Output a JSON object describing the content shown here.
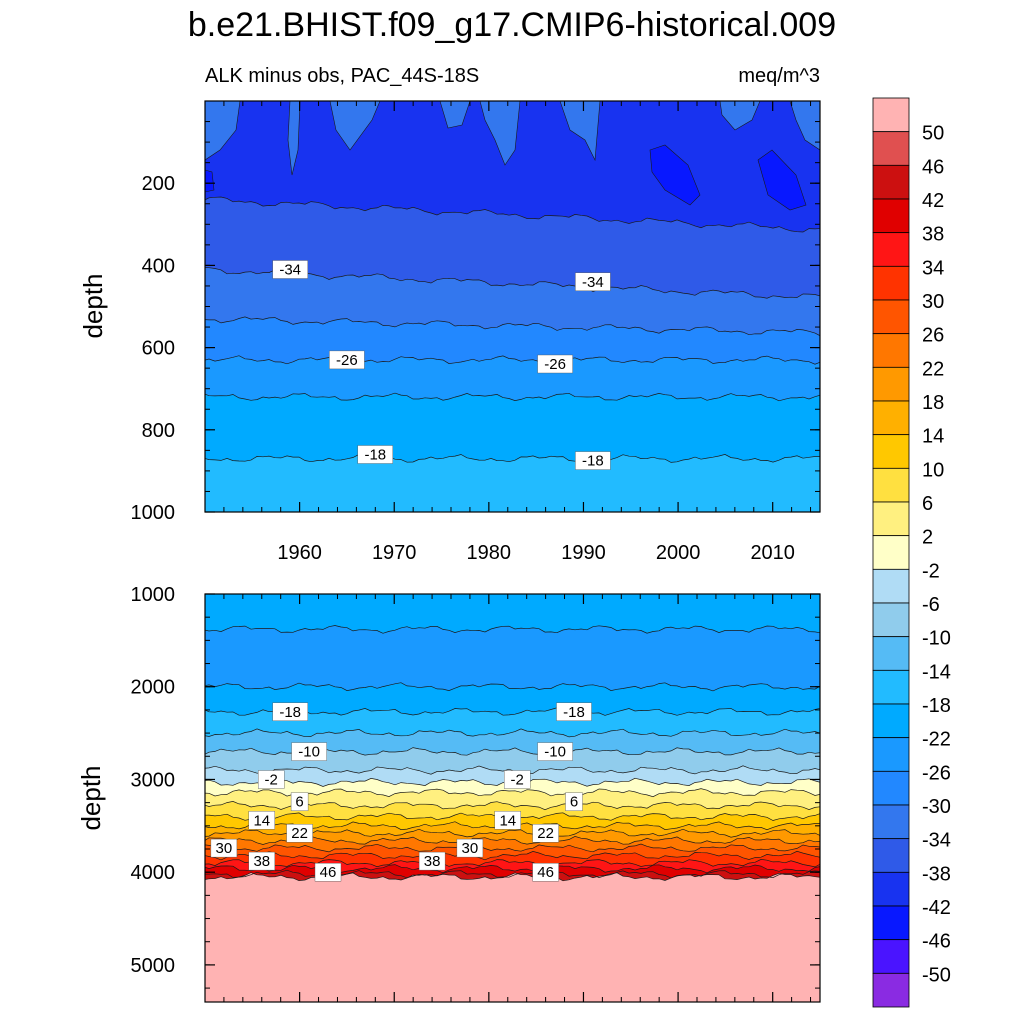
{
  "chart_data": {
    "type": "contour",
    "title": "b.e21.BHIST.f09_g17.CMIP6-historical.009",
    "subtitle_left": "ALK minus obs, PAC_44S-18S",
    "subtitle_right": "meq/m^3",
    "colorbar": {
      "levels": [
        50,
        46,
        42,
        38,
        34,
        30,
        26,
        22,
        18,
        14,
        10,
        6,
        2,
        -2,
        -6,
        -10,
        -14,
        -18,
        -22,
        -26,
        -30,
        -34,
        -38,
        -42,
        -46,
        -50
      ],
      "colors": [
        "#ffb3b3",
        "#e05050",
        "#cc1010",
        "#e00000",
        "#ff1515",
        "#ff3300",
        "#ff5500",
        "#ff7700",
        "#ff9900",
        "#ffb000",
        "#ffc800",
        "#ffe040",
        "#fff080",
        "#ffffc8",
        "#b0dcf5",
        "#90ccec",
        "#55bbf5",
        "#22bbff",
        "#00aaff",
        "#1a99ff",
        "#2288ff",
        "#3377ee",
        "#2f5ae8",
        "#1833f0",
        "#0818ff",
        "#4a14ff",
        "#8a2be2"
      ]
    },
    "panels": [
      {
        "id": "upper",
        "ylabel": "depth",
        "ylim": [
          0,
          1000
        ],
        "yticks": [
          200,
          400,
          600,
          800,
          1000
        ],
        "xlim": [
          1950,
          2015
        ],
        "xticks": [
          1960,
          1970,
          1980,
          1990,
          2000,
          2010
        ],
        "bands": [
          {
            "from_depth": 0,
            "to_depth": 240,
            "value": -40
          },
          {
            "from_depth": 240,
            "to_depth": 410,
            "value": -36
          },
          {
            "from_depth": 410,
            "to_depth": 530,
            "value": -32
          },
          {
            "from_depth": 530,
            "to_depth": 630,
            "value": -28
          },
          {
            "from_depth": 630,
            "to_depth": 720,
            "value": -24
          },
          {
            "from_depth": 720,
            "to_depth": 870,
            "value": -20
          },
          {
            "from_depth": 870,
            "to_depth": 1000,
            "value": -16
          }
        ],
        "contour_labels": [
          {
            "text": "-34",
            "year": 1959,
            "depth": 410
          },
          {
            "text": "-34",
            "year": 1991,
            "depth": 440
          },
          {
            "text": "-26",
            "year": 1965,
            "depth": 630
          },
          {
            "text": "-26",
            "year": 1987,
            "depth": 640
          },
          {
            "text": "-18",
            "year": 1968,
            "depth": 860
          },
          {
            "text": "-18",
            "year": 1991,
            "depth": 875
          }
        ]
      },
      {
        "id": "lower",
        "ylabel": "depth",
        "ylim": [
          1000,
          5400
        ],
        "yticks": [
          1000,
          2000,
          3000,
          4000,
          5000
        ],
        "xlim": [
          1950,
          2015
        ],
        "bands": [
          {
            "from_depth": 1000,
            "to_depth": 1380,
            "value": -20
          },
          {
            "from_depth": 1380,
            "to_depth": 2000,
            "value": -24
          },
          {
            "from_depth": 2000,
            "to_depth": 2270,
            "value": -20
          },
          {
            "from_depth": 2270,
            "to_depth": 2500,
            "value": -16
          },
          {
            "from_depth": 2500,
            "to_depth": 2700,
            "value": -12
          },
          {
            "from_depth": 2700,
            "to_depth": 2900,
            "value": -8
          },
          {
            "from_depth": 2900,
            "to_depth": 3030,
            "value": -4
          },
          {
            "from_depth": 3030,
            "to_depth": 3140,
            "value": 0
          },
          {
            "from_depth": 3140,
            "to_depth": 3280,
            "value": 4
          },
          {
            "from_depth": 3280,
            "to_depth": 3400,
            "value": 8
          },
          {
            "from_depth": 3400,
            "to_depth": 3500,
            "value": 12
          },
          {
            "from_depth": 3500,
            "to_depth": 3580,
            "value": 16
          },
          {
            "from_depth": 3580,
            "to_depth": 3660,
            "value": 20
          },
          {
            "from_depth": 3660,
            "to_depth": 3740,
            "value": 24
          },
          {
            "from_depth": 3740,
            "to_depth": 3820,
            "value": 28
          },
          {
            "from_depth": 3820,
            "to_depth": 3900,
            "value": 32
          },
          {
            "from_depth": 3900,
            "to_depth": 3960,
            "value": 36
          },
          {
            "from_depth": 3960,
            "to_depth": 4020,
            "value": 40
          },
          {
            "from_depth": 4020,
            "to_depth": 4050,
            "value": 44
          },
          {
            "from_depth": 4050,
            "to_depth": 5400,
            "value": 52
          }
        ],
        "contour_labels": [
          {
            "text": "-18",
            "year": 1959,
            "depth": 2270
          },
          {
            "text": "-18",
            "year": 1989,
            "depth": 2270
          },
          {
            "text": "-10",
            "year": 1961,
            "depth": 2700
          },
          {
            "text": "-10",
            "year": 1987,
            "depth": 2700
          },
          {
            "text": "-2",
            "year": 1957,
            "depth": 3000
          },
          {
            "text": "-2",
            "year": 1983,
            "depth": 3000
          },
          {
            "text": "6",
            "year": 1960,
            "depth": 3240
          },
          {
            "text": "6",
            "year": 1989,
            "depth": 3240
          },
          {
            "text": "14",
            "year": 1956,
            "depth": 3440
          },
          {
            "text": "14",
            "year": 1982,
            "depth": 3440
          },
          {
            "text": "22",
            "year": 1960,
            "depth": 3580
          },
          {
            "text": "22",
            "year": 1986,
            "depth": 3580
          },
          {
            "text": "30",
            "year": 1952,
            "depth": 3740
          },
          {
            "text": "30",
            "year": 1978,
            "depth": 3740
          },
          {
            "text": "38",
            "year": 1956,
            "depth": 3880
          },
          {
            "text": "38",
            "year": 1974,
            "depth": 3880
          },
          {
            "text": "46",
            "year": 1963,
            "depth": 4000
          },
          {
            "text": "46",
            "year": 1986,
            "depth": 4000
          }
        ]
      }
    ]
  }
}
